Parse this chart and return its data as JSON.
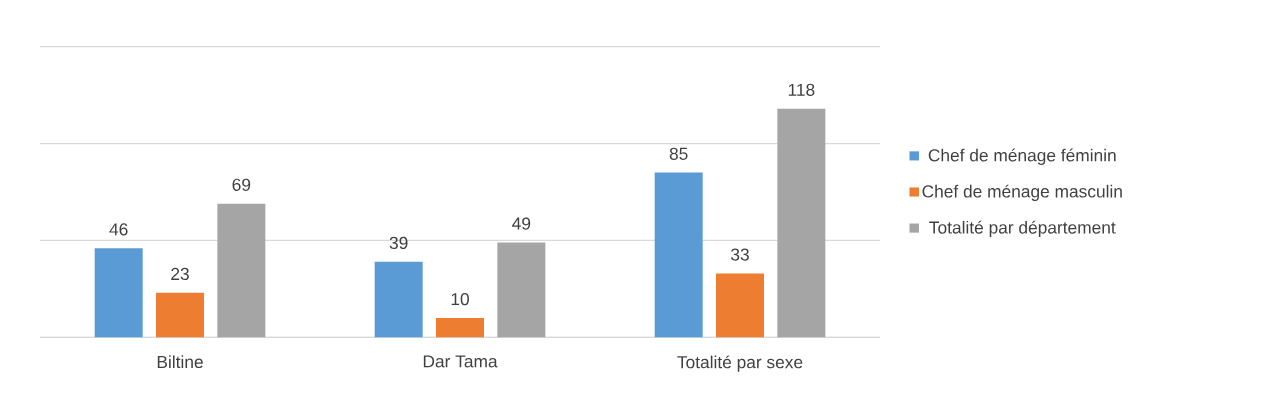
{
  "chart_data": {
    "type": "bar",
    "categories": [
      "Biltine",
      "Dar Tama",
      "Totalité par sexe"
    ],
    "series": [
      {
        "name": "Chef de ménage féminin",
        "color": "#5b9bd5",
        "values": [
          46,
          39,
          85
        ]
      },
      {
        "name": "Chef de ménage masculin",
        "color": "#ed7d31",
        "values": [
          23,
          10,
          33
        ]
      },
      {
        "name": "Totalité par département",
        "color": "#a5a5a5",
        "values": [
          69,
          49,
          118
        ]
      }
    ],
    "ylim": [
      0,
      150
    ],
    "yticks": [
      {
        "value": 0,
        "label": null
      },
      {
        "value": 50,
        "label": null
      },
      {
        "value": 100,
        "label": null
      },
      {
        "value": 150,
        "label": null
      }
    ],
    "grid": "y",
    "tick_labels": "x",
    "data_labels": true,
    "legend": "right"
  }
}
